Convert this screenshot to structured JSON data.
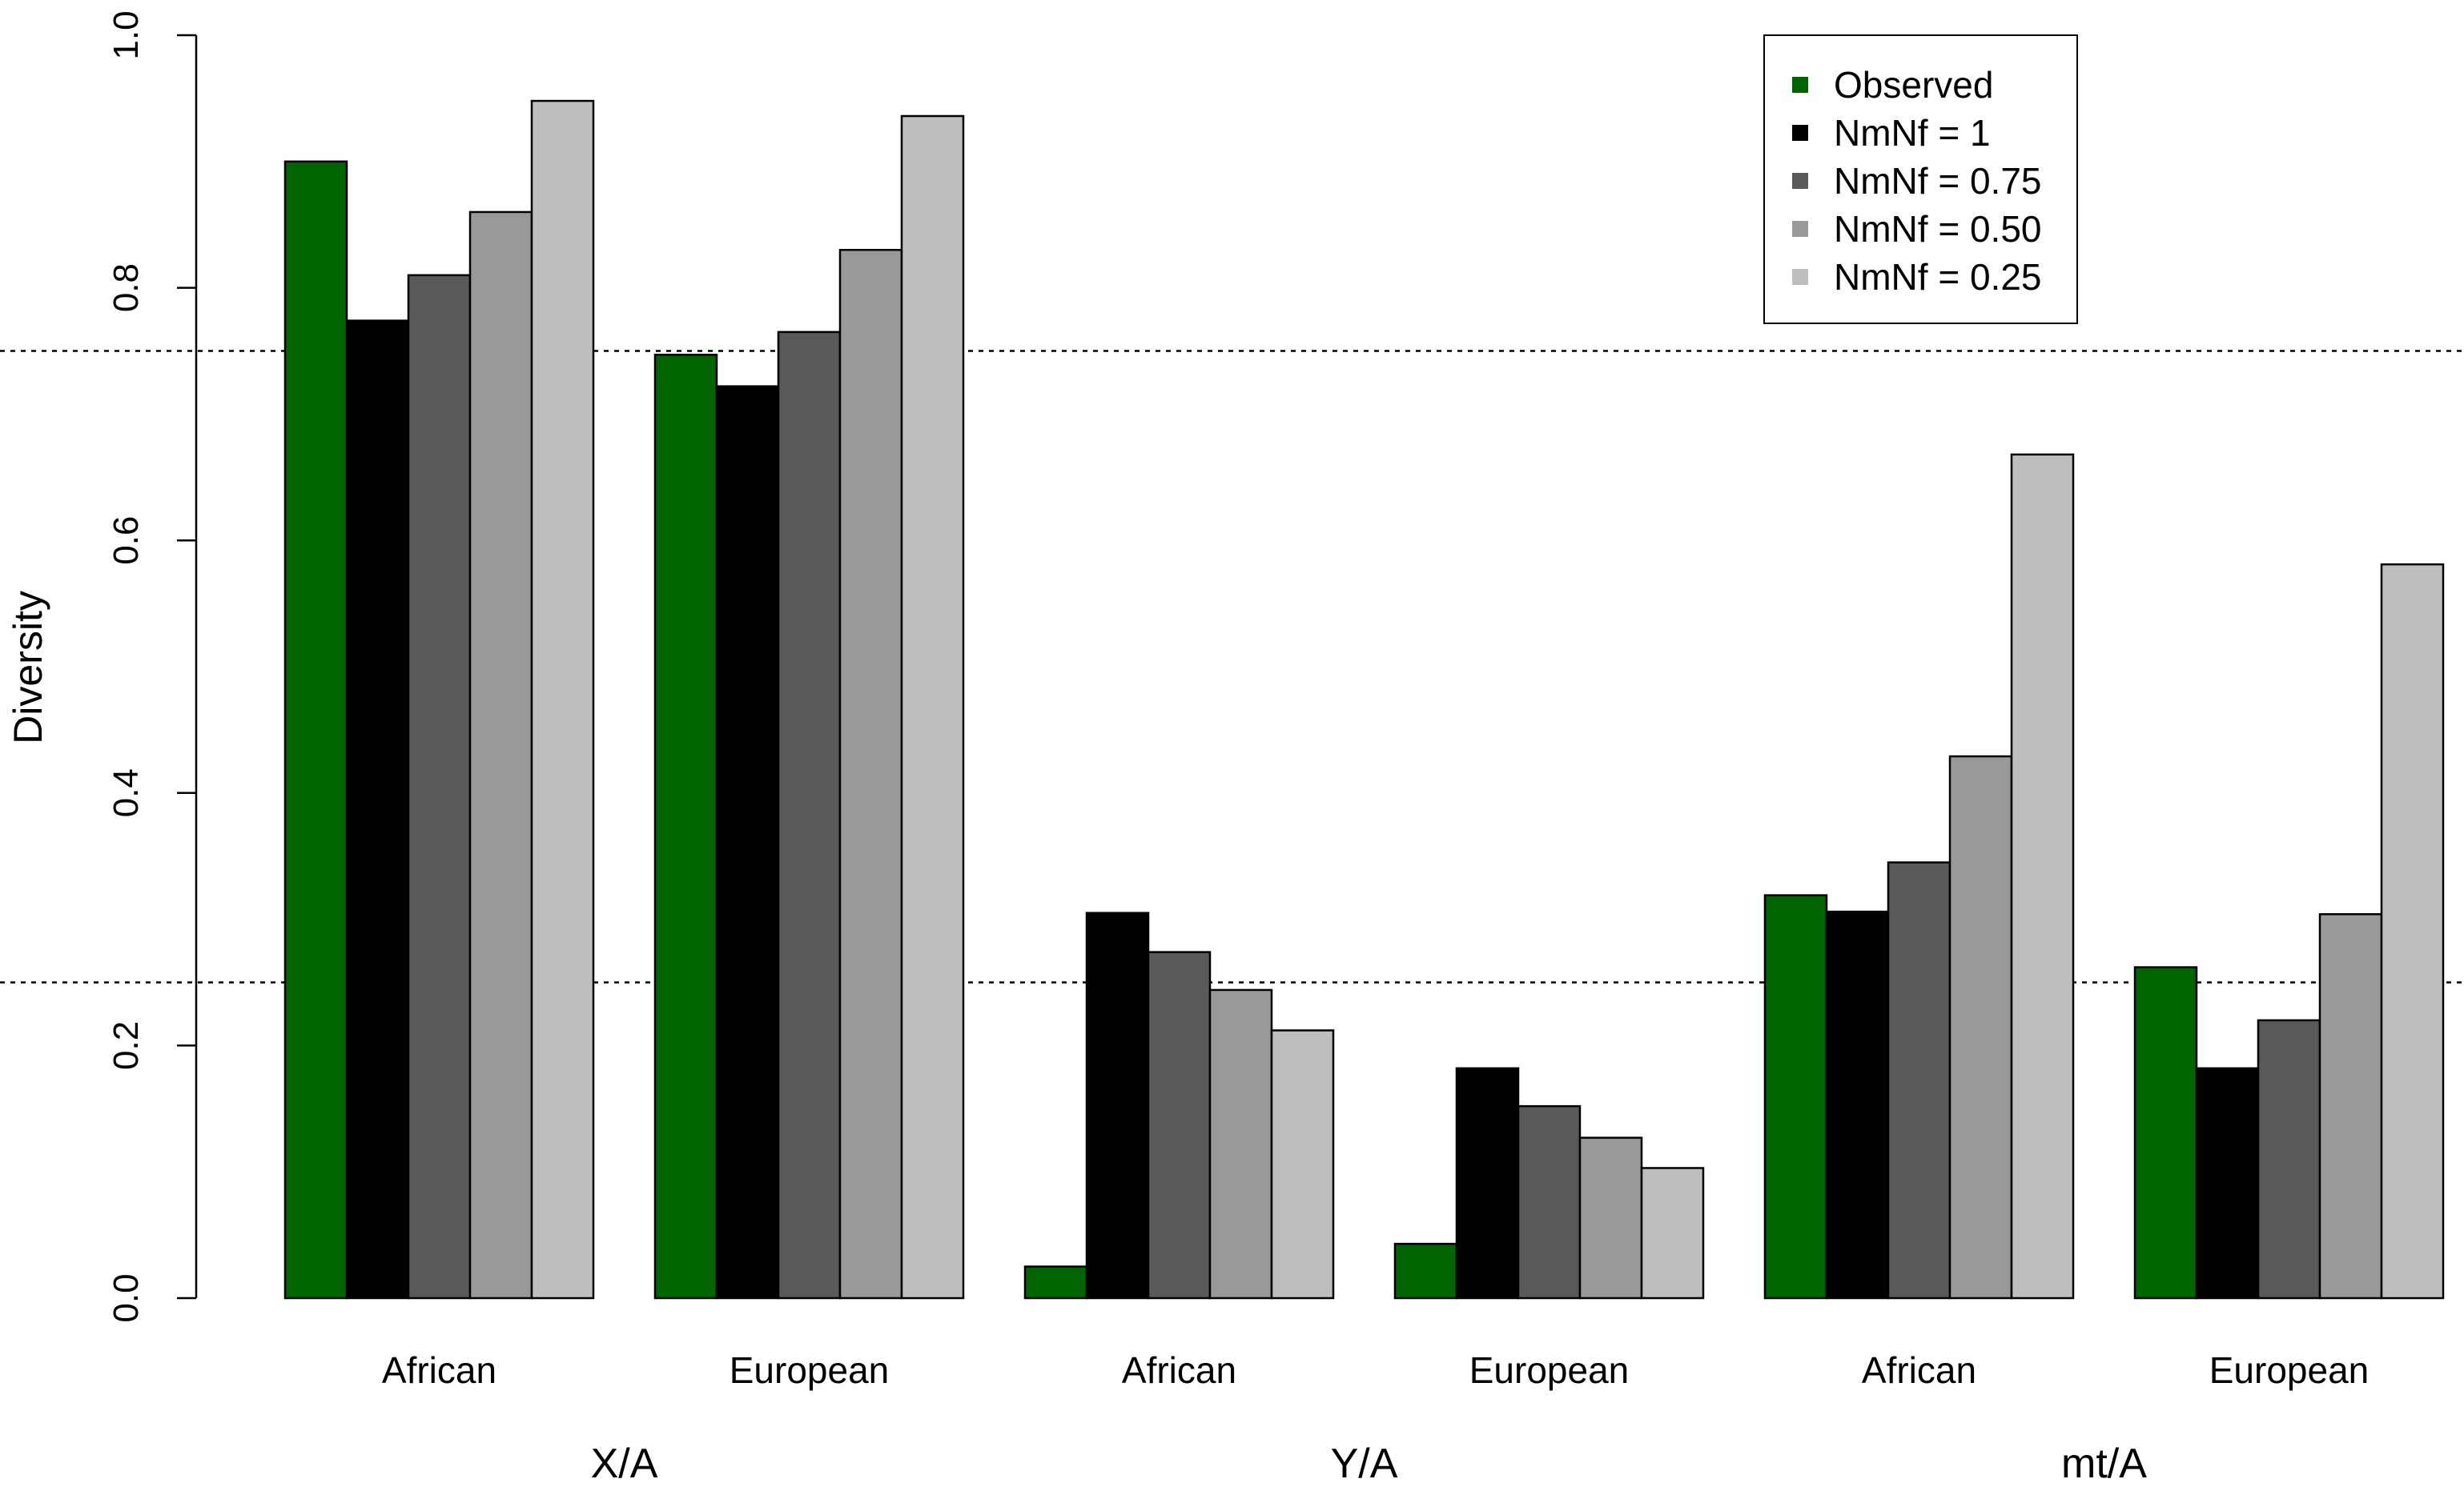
{
  "chart_data": {
    "type": "bar",
    "title": "",
    "ylabel": "Diversity",
    "ylim": [
      0,
      1.0
    ],
    "yticks": [
      0.0,
      0.2,
      0.4,
      0.6,
      0.8,
      1.0
    ],
    "ytick_labels": [
      "0.0",
      "0.2",
      "0.4",
      "0.6",
      "0.8",
      "1.0"
    ],
    "reference_lines": [
      0.75,
      0.25
    ],
    "legend_position": "top-right",
    "groups": [
      {
        "label": "X/A",
        "categories": [
          "African",
          "European"
        ]
      },
      {
        "label": "Y/A",
        "categories": [
          "African",
          "European"
        ]
      },
      {
        "label": "mt/A",
        "categories": [
          "African",
          "European"
        ]
      }
    ],
    "categories": [
      "African",
      "European",
      "African",
      "European",
      "African",
      "European"
    ],
    "series": [
      {
        "name": "Observed",
        "color": "#006400",
        "values": [
          0.9,
          0.747,
          0.025,
          0.043,
          0.319,
          0.262
        ]
      },
      {
        "name": "NmNf = 1",
        "color": "#000000",
        "values": [
          0.774,
          0.722,
          0.305,
          0.182,
          0.306,
          0.182
        ]
      },
      {
        "name": "NmNf = 0.75",
        "color": "#595959",
        "values": [
          0.81,
          0.765,
          0.274,
          0.152,
          0.345,
          0.22
        ]
      },
      {
        "name": "NmNf = 0.50",
        "color": "#999999",
        "values": [
          0.86,
          0.83,
          0.244,
          0.127,
          0.429,
          0.304
        ]
      },
      {
        "name": "NmNf = 0.25",
        "color": "#bebebe",
        "values": [
          0.948,
          0.936,
          0.212,
          0.103,
          0.668,
          0.581
        ]
      }
    ]
  }
}
